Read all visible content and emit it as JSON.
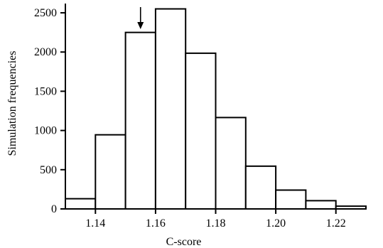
{
  "chart_data": {
    "type": "bar",
    "title": "",
    "xlabel": "C-score",
    "ylabel": "Simulation frequencies",
    "bins": [
      {
        "start": 1.13,
        "end": 1.14,
        "value": 130
      },
      {
        "start": 1.14,
        "end": 1.15,
        "value": 945
      },
      {
        "start": 1.15,
        "end": 1.16,
        "value": 2250
      },
      {
        "start": 1.16,
        "end": 1.17,
        "value": 2550
      },
      {
        "start": 1.17,
        "end": 1.18,
        "value": 1985
      },
      {
        "start": 1.18,
        "end": 1.19,
        "value": 1165
      },
      {
        "start": 1.19,
        "end": 1.2,
        "value": 545
      },
      {
        "start": 1.2,
        "end": 1.21,
        "value": 240
      },
      {
        "start": 1.21,
        "end": 1.22,
        "value": 105
      },
      {
        "start": 1.22,
        "end": 1.23,
        "value": 35
      }
    ],
    "xlim": [
      1.13,
      1.23
    ],
    "ylim": [
      0,
      2600
    ],
    "x_ticks": [
      "1.14",
      "1.16",
      "1.18",
      "1.20",
      "1.22"
    ],
    "y_ticks": [
      "0",
      "500",
      "1000",
      "1500",
      "2000",
      "2500"
    ],
    "observed_marker": {
      "x": 1.155,
      "symbol": "arrow-down"
    },
    "grid": false,
    "colors": {
      "bar_fill": "#ffffff",
      "bar_stroke": "#000000",
      "axis": "#000000"
    }
  }
}
